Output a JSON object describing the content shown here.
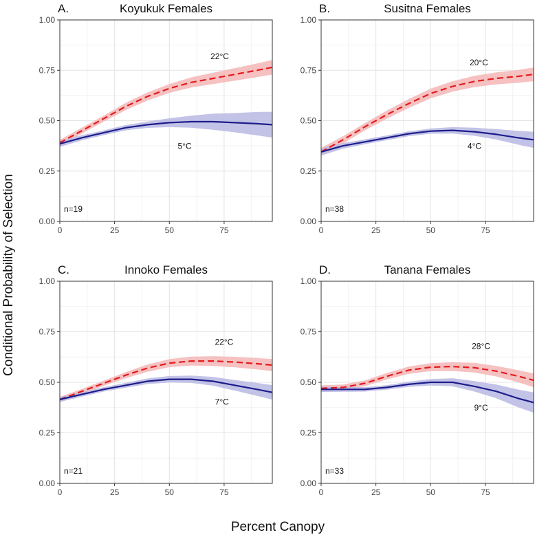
{
  "figure": {
    "ylabel": "Conditional Probability of Selection",
    "xlabel": "Percent Canopy"
  },
  "colors": {
    "warm_line": "#e41a1c",
    "warm_band": "#f4b6b6",
    "cool_line": "#1c1c8c",
    "cool_band": "#b9b9e3",
    "grid_major": "#e3e3e3",
    "grid_minor": "#f1f1f1",
    "frame": "#333333"
  },
  "chart_data": [
    {
      "type": "line",
      "panel_letter": "A.",
      "title": "Koyukuk Females",
      "n_label": "n=19",
      "xlim": [
        0,
        97
      ],
      "ylim": [
        0,
        1
      ],
      "x_ticks": [
        0,
        25,
        50,
        75
      ],
      "y_ticks": [
        "0.00",
        "0.25",
        "0.50",
        "0.75",
        "1.00"
      ],
      "grid": true,
      "series": [
        {
          "name": "22°C",
          "style": "dashed",
          "color": "#e41a1c",
          "label_at": [
            73,
            0.805
          ],
          "x": [
            0,
            10,
            20,
            30,
            40,
            50,
            60,
            70,
            80,
            90,
            97
          ],
          "y": [
            0.39,
            0.45,
            0.51,
            0.57,
            0.62,
            0.66,
            0.69,
            0.71,
            0.73,
            0.75,
            0.765
          ],
          "ci_half": [
            0.015,
            0.015,
            0.015,
            0.018,
            0.02,
            0.022,
            0.025,
            0.028,
            0.031,
            0.034,
            0.036
          ]
        },
        {
          "name": "5°C",
          "style": "solid",
          "color": "#1c1c8c",
          "label_at": [
            57,
            0.36
          ],
          "x": [
            0,
            10,
            20,
            30,
            40,
            50,
            60,
            70,
            80,
            90,
            97
          ],
          "y": [
            0.385,
            0.415,
            0.44,
            0.465,
            0.48,
            0.49,
            0.495,
            0.495,
            0.49,
            0.485,
            0.48
          ],
          "ci_half": [
            0.015,
            0.013,
            0.012,
            0.013,
            0.016,
            0.022,
            0.03,
            0.04,
            0.048,
            0.058,
            0.064
          ]
        }
      ]
    },
    {
      "type": "line",
      "panel_letter": "B.",
      "title": "Susitna Females",
      "n_label": "n=38",
      "xlim": [
        0,
        97
      ],
      "ylim": [
        0,
        1
      ],
      "x_ticks": [
        0,
        25,
        50,
        75
      ],
      "y_ticks": [
        "0.00",
        "0.25",
        "0.50",
        "0.75",
        "1.00"
      ],
      "grid": true,
      "series": [
        {
          "name": "20°C",
          "style": "dashed",
          "color": "#e41a1c",
          "label_at": [
            72,
            0.775
          ],
          "x": [
            0,
            10,
            20,
            30,
            40,
            50,
            60,
            70,
            80,
            90,
            97
          ],
          "y": [
            0.345,
            0.405,
            0.47,
            0.53,
            0.585,
            0.635,
            0.67,
            0.695,
            0.71,
            0.72,
            0.73
          ],
          "ci_half": [
            0.02,
            0.018,
            0.018,
            0.02,
            0.022,
            0.024,
            0.026,
            0.028,
            0.03,
            0.032,
            0.034
          ]
        },
        {
          "name": "4°C",
          "style": "solid",
          "color": "#1c1c8c",
          "label_at": [
            70,
            0.36
          ],
          "x": [
            0,
            10,
            20,
            30,
            40,
            50,
            60,
            70,
            80,
            90,
            97
          ],
          "y": [
            0.345,
            0.375,
            0.395,
            0.415,
            0.435,
            0.448,
            0.452,
            0.445,
            0.432,
            0.415,
            0.405
          ],
          "ci_half": [
            0.018,
            0.014,
            0.012,
            0.012,
            0.012,
            0.013,
            0.016,
            0.02,
            0.026,
            0.034,
            0.04
          ]
        }
      ]
    },
    {
      "type": "line",
      "panel_letter": "C.",
      "title": "Innoko Females",
      "n_label": "n=21",
      "xlim": [
        0,
        97
      ],
      "ylim": [
        0,
        1
      ],
      "x_ticks": [
        0,
        25,
        50,
        75
      ],
      "y_ticks": [
        "0.00",
        "0.25",
        "0.50",
        "0.75",
        "1.00"
      ],
      "grid": true,
      "series": [
        {
          "name": "22°C",
          "style": "dashed",
          "color": "#e41a1c",
          "label_at": [
            75,
            0.685
          ],
          "x": [
            0,
            10,
            20,
            30,
            40,
            50,
            60,
            70,
            80,
            90,
            97
          ],
          "y": [
            0.415,
            0.455,
            0.495,
            0.535,
            0.57,
            0.595,
            0.605,
            0.605,
            0.6,
            0.592,
            0.585
          ],
          "ci_half": [
            0.013,
            0.012,
            0.013,
            0.015,
            0.018,
            0.02,
            0.022,
            0.024,
            0.026,
            0.028,
            0.03
          ]
        },
        {
          "name": "7°C",
          "style": "solid",
          "color": "#1c1c8c",
          "label_at": [
            74,
            0.39
          ],
          "x": [
            0,
            10,
            20,
            30,
            40,
            50,
            60,
            70,
            80,
            90,
            97
          ],
          "y": [
            0.415,
            0.44,
            0.465,
            0.485,
            0.505,
            0.515,
            0.515,
            0.505,
            0.485,
            0.465,
            0.45
          ],
          "ci_half": [
            0.012,
            0.011,
            0.011,
            0.012,
            0.014,
            0.016,
            0.018,
            0.022,
            0.026,
            0.032,
            0.036
          ]
        }
      ]
    },
    {
      "type": "line",
      "panel_letter": "D.",
      "title": "Tanana Females",
      "n_label": "n=33",
      "xlim": [
        0,
        97
      ],
      "ylim": [
        0,
        1
      ],
      "x_ticks": [
        0,
        25,
        50,
        75
      ],
      "y_ticks": [
        "0.00",
        "0.25",
        "0.50",
        "0.75",
        "1.00"
      ],
      "grid": true,
      "series": [
        {
          "name": "28°C",
          "style": "dashed",
          "color": "#e41a1c",
          "label_at": [
            73,
            0.665
          ],
          "x": [
            0,
            10,
            20,
            30,
            40,
            50,
            60,
            70,
            80,
            90,
            97
          ],
          "y": [
            0.47,
            0.475,
            0.495,
            0.53,
            0.56,
            0.575,
            0.578,
            0.572,
            0.555,
            0.53,
            0.51
          ],
          "ci_half": [
            0.015,
            0.014,
            0.014,
            0.016,
            0.018,
            0.02,
            0.022,
            0.024,
            0.026,
            0.03,
            0.034
          ]
        },
        {
          "name": "9°C",
          "style": "solid",
          "color": "#1c1c8c",
          "label_at": [
            73,
            0.36
          ],
          "x": [
            0,
            10,
            20,
            30,
            40,
            50,
            60,
            70,
            80,
            90,
            97
          ],
          "y": [
            0.465,
            0.465,
            0.465,
            0.475,
            0.49,
            0.5,
            0.5,
            0.48,
            0.455,
            0.42,
            0.4
          ],
          "ci_half": [
            0.013,
            0.012,
            0.011,
            0.011,
            0.013,
            0.016,
            0.02,
            0.026,
            0.034,
            0.044,
            0.05
          ]
        }
      ]
    }
  ]
}
